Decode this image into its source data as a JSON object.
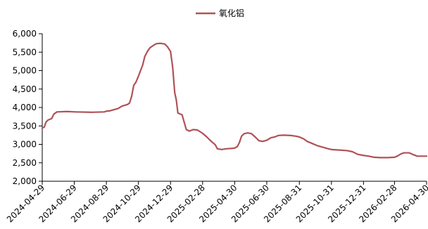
{
  "chart_data": {
    "type": "line",
    "title": "",
    "xlabel": "",
    "ylabel": "",
    "ylim": [
      2000,
      6000
    ],
    "y_ticks": [
      "2,000",
      "2,500",
      "3,000",
      "3,500",
      "4,000",
      "4,500",
      "5,000",
      "5,500",
      "6,000"
    ],
    "x_ticks": [
      "2024-04-29",
      "2024-06-29",
      "2024-08-29",
      "2024-10-29",
      "2024-12-29",
      "2025-02-28",
      "2025-04-30",
      "2025-06-30",
      "2025-08-31",
      "2025-10-31",
      "2025-12-31",
      "2026-02-28",
      "2026-04-30"
    ],
    "xlim": [
      "2024-04-29",
      "2026-04-30"
    ],
    "grid": false,
    "legend_position": "top-center",
    "series": [
      {
        "name": "氧化铝",
        "color": "#B05257",
        "points": [
          [
            "2024-04-29",
            3440
          ],
          [
            "2024-05-03",
            3470
          ],
          [
            "2024-05-06",
            3600
          ],
          [
            "2024-05-10",
            3660
          ],
          [
            "2024-05-17",
            3700
          ],
          [
            "2024-05-21",
            3820
          ],
          [
            "2024-05-27",
            3880
          ],
          [
            "2024-06-15",
            3890
          ],
          [
            "2024-07-01",
            3880
          ],
          [
            "2024-08-01",
            3870
          ],
          [
            "2024-08-25",
            3880
          ],
          [
            "2024-08-29",
            3900
          ],
          [
            "2024-09-05",
            3910
          ],
          [
            "2024-09-12",
            3940
          ],
          [
            "2024-09-20",
            3970
          ],
          [
            "2024-09-28",
            4040
          ],
          [
            "2024-10-08",
            4080
          ],
          [
            "2024-10-12",
            4120
          ],
          [
            "2024-10-16",
            4300
          ],
          [
            "2024-10-20",
            4600
          ],
          [
            "2024-10-24",
            4680
          ],
          [
            "2024-10-29",
            4850
          ],
          [
            "2024-11-02",
            5000
          ],
          [
            "2024-11-06",
            5150
          ],
          [
            "2024-11-10",
            5380
          ],
          [
            "2024-11-15",
            5520
          ],
          [
            "2024-11-20",
            5620
          ],
          [
            "2024-11-26",
            5680
          ],
          [
            "2024-12-02",
            5730
          ],
          [
            "2024-12-10",
            5740
          ],
          [
            "2024-12-18",
            5720
          ],
          [
            "2024-12-23",
            5650
          ],
          [
            "2024-12-29",
            5520
          ],
          [
            "2025-01-02",
            5100
          ],
          [
            "2025-01-06",
            4400
          ],
          [
            "2025-01-09",
            4200
          ],
          [
            "2025-01-12",
            3850
          ],
          [
            "2025-01-20",
            3800
          ],
          [
            "2025-01-24",
            3600
          ],
          [
            "2025-01-28",
            3400
          ],
          [
            "2025-02-03",
            3360
          ],
          [
            "2025-02-10",
            3400
          ],
          [
            "2025-02-18",
            3390
          ],
          [
            "2025-02-28",
            3300
          ],
          [
            "2025-03-08",
            3200
          ],
          [
            "2025-03-15",
            3100
          ],
          [
            "2025-03-24",
            2990
          ],
          [
            "2025-03-28",
            2880
          ],
          [
            "2025-04-05",
            2860
          ],
          [
            "2025-04-14",
            2880
          ],
          [
            "2025-04-25",
            2890
          ],
          [
            "2025-04-30",
            2900
          ],
          [
            "2025-05-05",
            2940
          ],
          [
            "2025-05-09",
            3050
          ],
          [
            "2025-05-13",
            3220
          ],
          [
            "2025-05-18",
            3290
          ],
          [
            "2025-05-25",
            3310
          ],
          [
            "2025-06-01",
            3290
          ],
          [
            "2025-06-08",
            3200
          ],
          [
            "2025-06-15",
            3100
          ],
          [
            "2025-06-22",
            3080
          ],
          [
            "2025-06-30",
            3110
          ],
          [
            "2025-07-08",
            3180
          ],
          [
            "2025-07-15",
            3200
          ],
          [
            "2025-07-22",
            3240
          ],
          [
            "2025-08-01",
            3250
          ],
          [
            "2025-08-15",
            3240
          ],
          [
            "2025-08-25",
            3220
          ],
          [
            "2025-08-31",
            3200
          ],
          [
            "2025-09-08",
            3150
          ],
          [
            "2025-09-15",
            3080
          ],
          [
            "2025-09-25",
            3020
          ],
          [
            "2025-10-05",
            2960
          ],
          [
            "2025-10-15",
            2920
          ],
          [
            "2025-10-25",
            2880
          ],
          [
            "2025-10-31",
            2860
          ],
          [
            "2025-11-10",
            2850
          ],
          [
            "2025-11-20",
            2840
          ],
          [
            "2025-11-30",
            2830
          ],
          [
            "2025-12-10",
            2800
          ],
          [
            "2025-12-20",
            2730
          ],
          [
            "2025-12-31",
            2700
          ],
          [
            "2026-01-10",
            2680
          ],
          [
            "2026-01-20",
            2650
          ],
          [
            "2026-02-01",
            2640
          ],
          [
            "2026-02-15",
            2640
          ],
          [
            "2026-02-28",
            2650
          ],
          [
            "2026-03-05",
            2680
          ],
          [
            "2026-03-12",
            2740
          ],
          [
            "2026-03-18",
            2770
          ],
          [
            "2026-03-28",
            2770
          ],
          [
            "2026-04-05",
            2720
          ],
          [
            "2026-04-12",
            2680
          ],
          [
            "2026-04-30",
            2680
          ]
        ]
      }
    ]
  }
}
